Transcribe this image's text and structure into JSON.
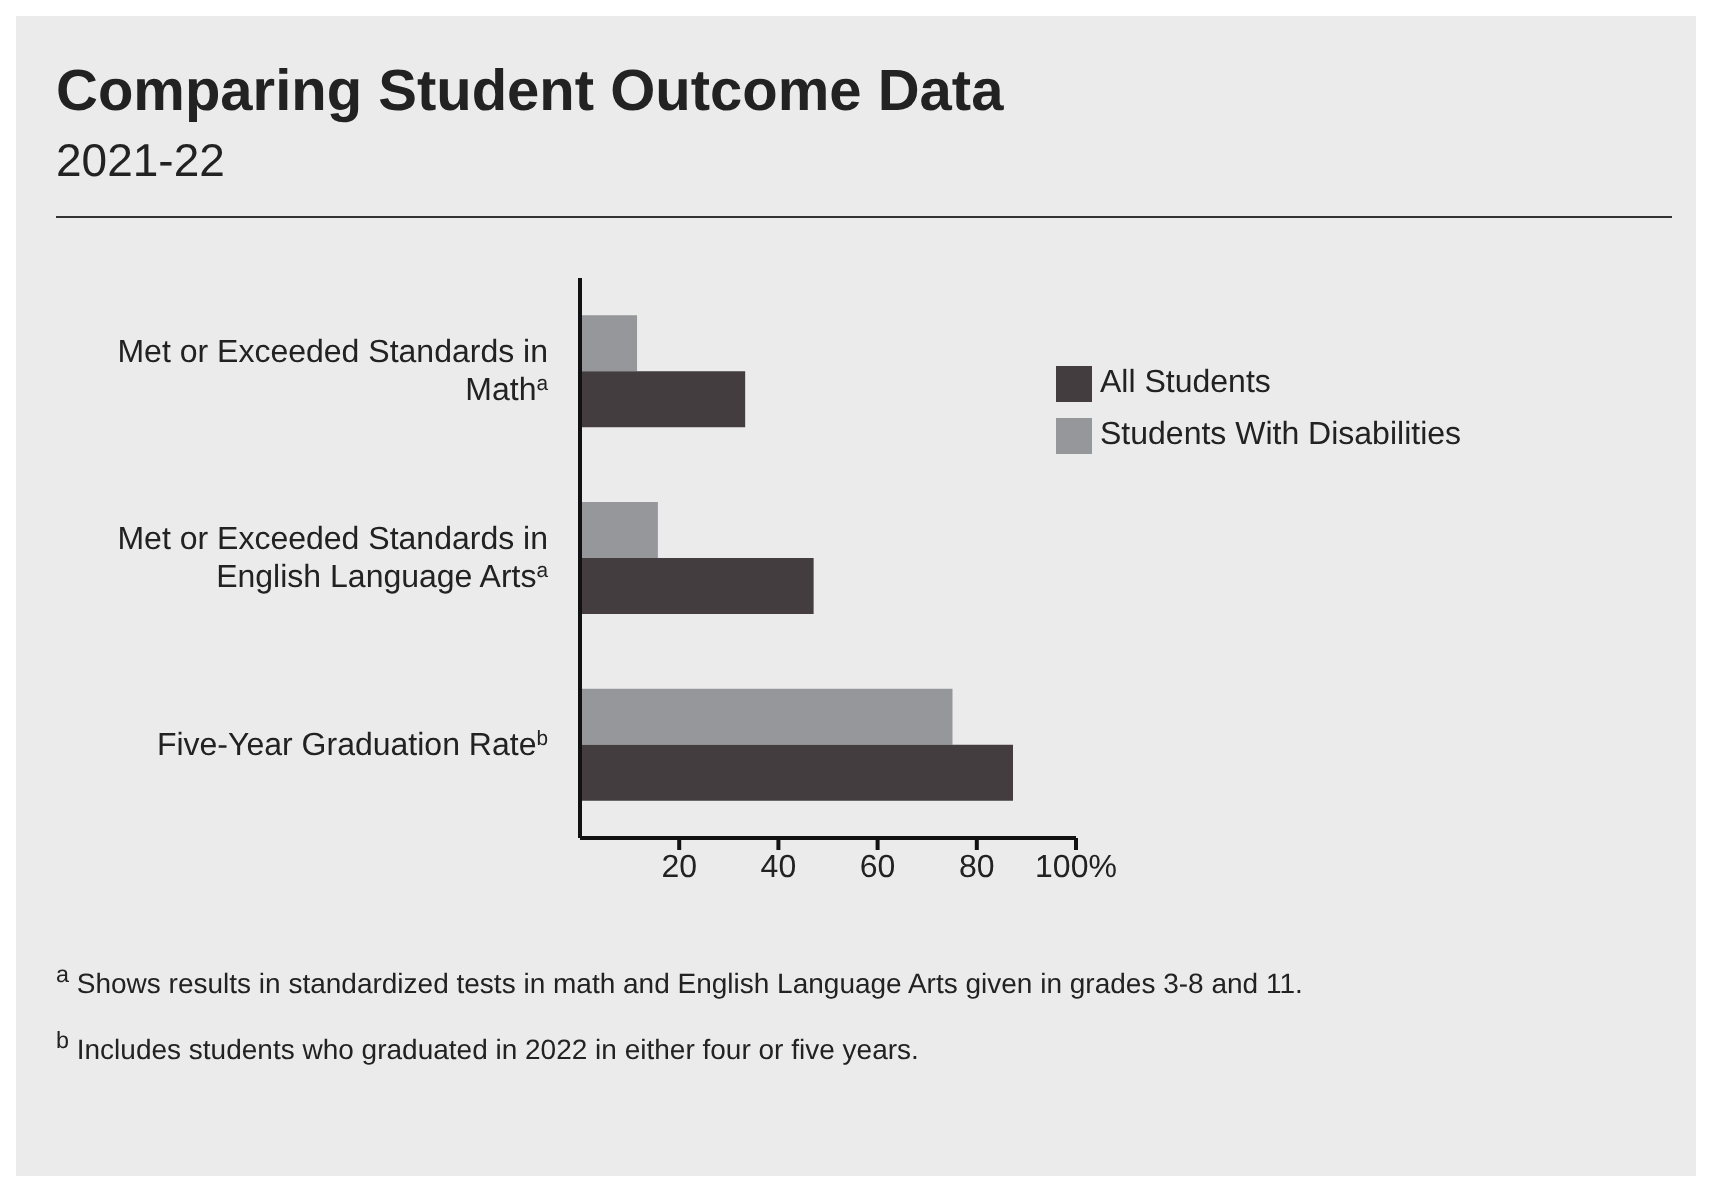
{
  "chart_data": {
    "type": "bar",
    "orientation": "horizontal",
    "title": "Comparing Student Outcome Data",
    "subtitle": "2021-22",
    "categories": [
      "Met or Exceeded Standards in Math$^{a}$",
      "Met or Exceeded Standards in English Language Arts$^{a}$",
      "Five-Year Graduation Rate$^{b}$"
    ],
    "series": [
      {
        "name": "Students With Disabilities",
        "color": "#96979b",
        "values": [
          11.5,
          15.7,
          75.1
        ]
      },
      {
        "name": "All Students",
        "color": "#433d3f",
        "values": [
          33.3,
          47.1,
          87.3
        ]
      }
    ],
    "xlim": [
      0,
      100
    ],
    "xticks": [
      20,
      40,
      60,
      80,
      {
        "value": 100,
        "label": "100%"
      }
    ],
    "grid": false,
    "legend": "top right",
    "annotations": [
      "$^{a}$ Shows results in standardized tests in math and English Language Arts given in grades 3-8 and 11.",
      "$^{b}$ Includes students who graduated in 2022 in either four or five years."
    ]
  }
}
